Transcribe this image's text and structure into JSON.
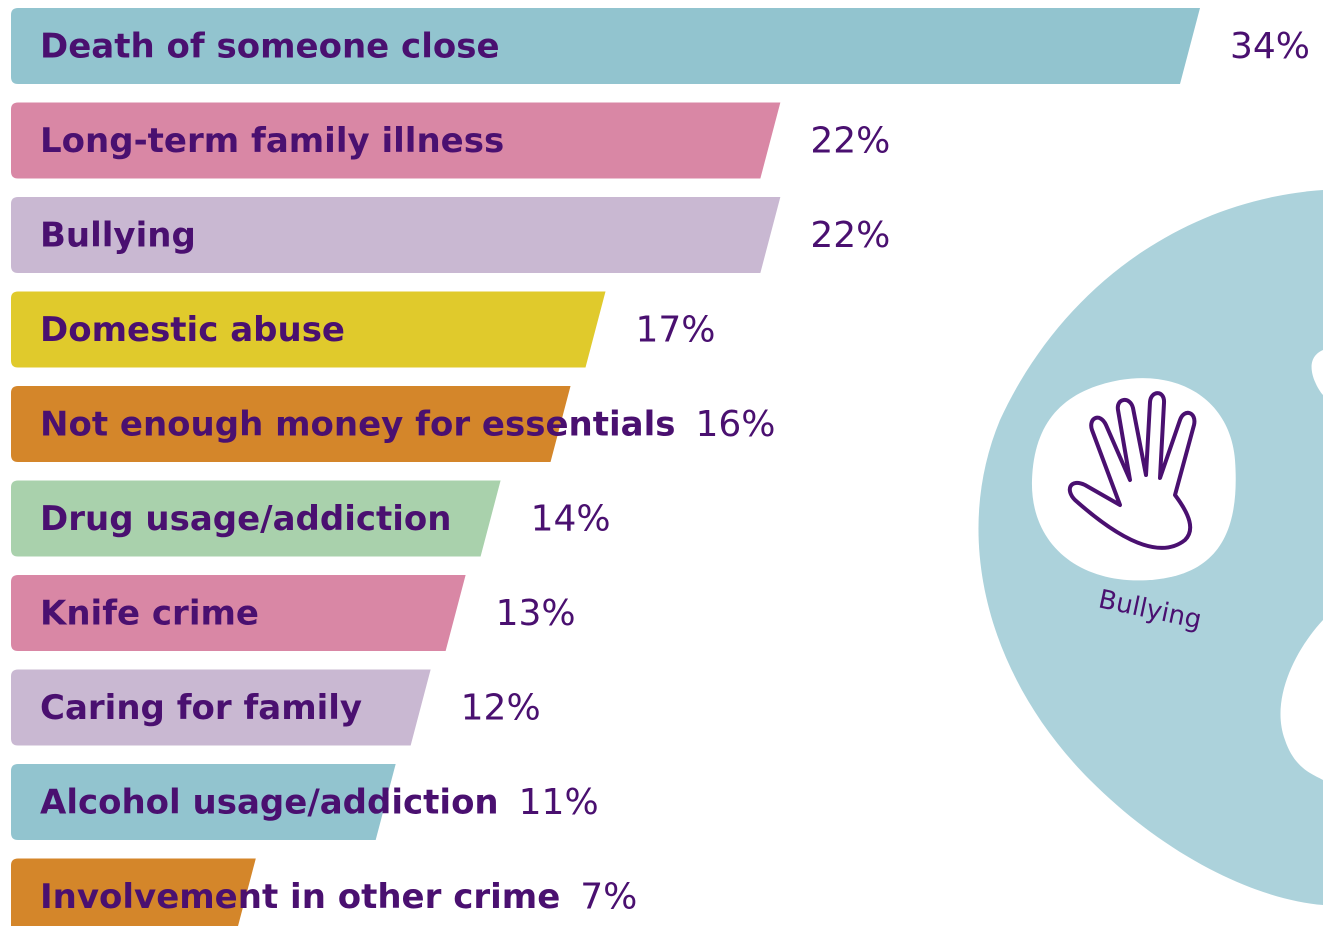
{
  "chart_data": {
    "type": "bar",
    "orientation": "horizontal",
    "categories": [
      "Death of someone close",
      "Long-term family illness",
      "Bullying",
      "Domestic abuse",
      "Not enough money for essentials",
      "Drug usage/addiction",
      "Knife crime",
      "Caring for family",
      "Alcohol usage/addiction",
      "Involvement in other crime"
    ],
    "values": [
      34,
      22,
      22,
      17,
      16,
      14,
      13,
      12,
      11,
      7
    ],
    "value_labels": [
      "34%",
      "22%",
      "22%",
      "17%",
      "16%",
      "14%",
      "13%",
      "12%",
      "11%",
      "7%"
    ],
    "colors": [
      "#92c4cf",
      "#d987a5",
      "#c9b8d2",
      "#e0ca2c",
      "#d4862a",
      "#a9d1ac",
      "#d987a5",
      "#c9b8d2",
      "#92c4cf",
      "#d4862a"
    ],
    "xlim": [
      0,
      34
    ],
    "annotation": "Bullying"
  }
}
